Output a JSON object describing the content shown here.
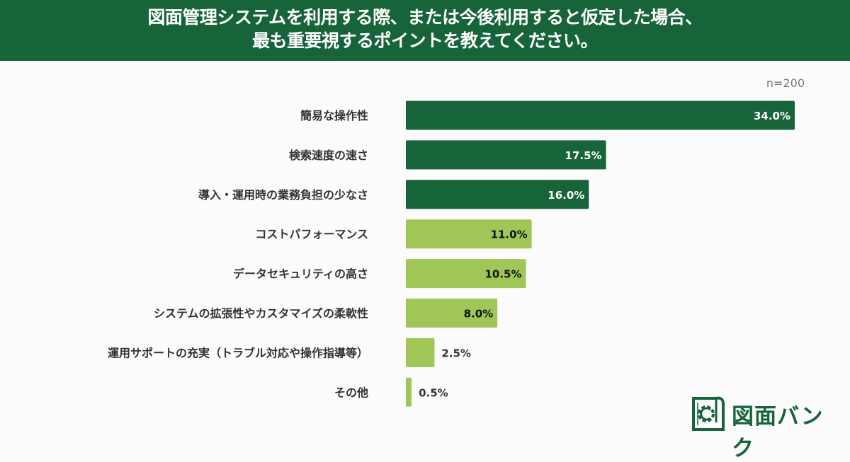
{
  "header": {
    "title_line1": "図面管理システムを利用する際、または今後利用すると仮定した場合、",
    "title_line2": "最も重要視するポイントを教えてください。"
  },
  "sample_size": "n=200",
  "logo": {
    "text": "図面バンク"
  },
  "colors": {
    "header": "#17643a",
    "dark_bar": "#17643a",
    "light_bar": "#9fc657"
  },
  "chart_data": {
    "type": "bar",
    "orientation": "horizontal",
    "title": "図面管理システムを利用する際、または今後利用すると仮定した場合、最も重要視するポイントを教えてください。",
    "xlabel": "",
    "ylabel": "",
    "xlim": [
      0,
      34
    ],
    "unit": "%",
    "categories": [
      "簡易な操作性",
      "検索速度の速さ",
      "導入・運用時の業務負担の少なさ",
      "コストパフォーマンス",
      "データセキュリティの高さ",
      "システムの拡張性やカスタマイズの柔軟性",
      "運用サポートの充実（トラブル対応や操作指導等）",
      "その他"
    ],
    "values": [
      34.0,
      17.5,
      16.0,
      11.0,
      10.5,
      8.0,
      2.5,
      0.5
    ],
    "value_labels": [
      "34.0%",
      "17.5%",
      "16.0%",
      "11.0%",
      "10.5%",
      "8.0%",
      "2.5%",
      "0.5%"
    ],
    "highlight": [
      true,
      true,
      true,
      false,
      false,
      false,
      false,
      false
    ]
  }
}
